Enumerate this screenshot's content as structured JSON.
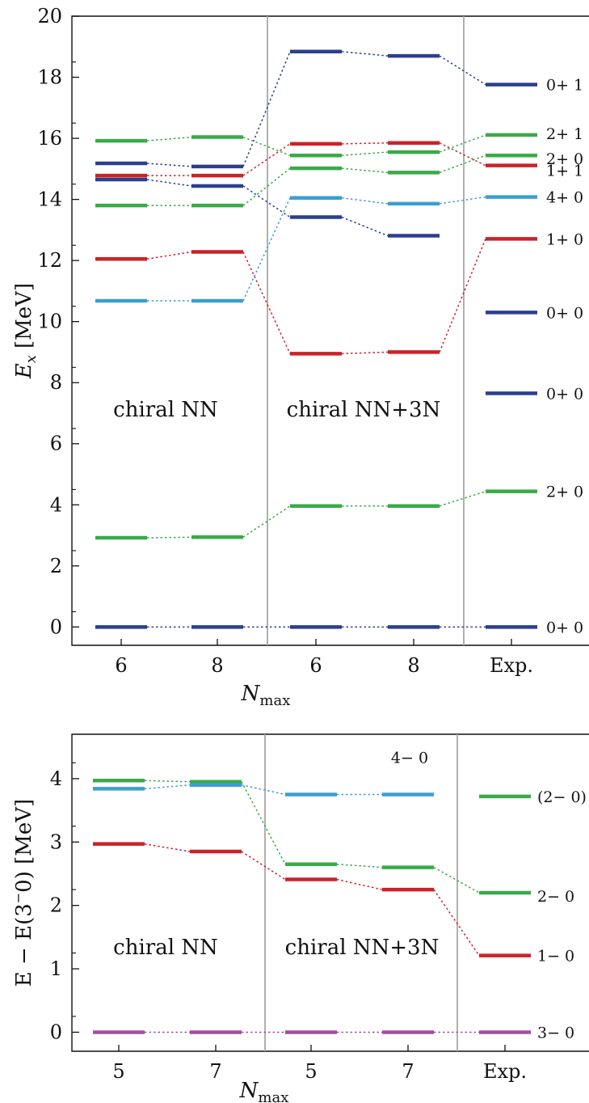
{
  "chart_data": [
    {
      "type": "level-scheme",
      "ylabel_main": "E",
      "ylabel_sub": "x",
      "ylabel_unit": "[MeV]",
      "xlabel_main": "N",
      "xlabel_sub": "max",
      "ylim": [
        -0.6,
        20
      ],
      "yticks": [
        "0",
        "2",
        "4",
        "6",
        "8",
        "10",
        "12",
        "14",
        "16",
        "18",
        "20"
      ],
      "columns": [
        "6",
        "8",
        "6",
        "8",
        "Exp."
      ],
      "group_labels": [
        "chiral NN",
        "chiral NN+3N"
      ],
      "colors": {
        "dark_blue": "#2c3f8f",
        "green": "#3aaa48",
        "red": "#cc2229",
        "light_blue": "#3a9fd2"
      },
      "states": [
        {
          "color": "dark_blue",
          "values": [
            0.0,
            0.0,
            0.0,
            0.0,
            0.0
          ],
          "label": "0+ 0"
        },
        {
          "color": "green",
          "values": [
            2.92,
            2.94,
            3.96,
            3.96,
            4.44
          ],
          "label": "2+ 0"
        },
        {
          "color": "dark_blue",
          "values": [
            null,
            null,
            null,
            null,
            7.65
          ],
          "label": "0+ 0"
        },
        {
          "color": "dark_blue",
          "values": [
            null,
            null,
            null,
            null,
            10.3
          ],
          "label": "0+ 0"
        },
        {
          "color": "red",
          "values": [
            12.05,
            12.28,
            8.95,
            9.0,
            12.71
          ],
          "label": "1+ 0"
        },
        {
          "color": "light_blue",
          "values": [
            10.68,
            10.68,
            14.05,
            13.86,
            14.08
          ],
          "label": "4+ 0"
        },
        {
          "color": "green",
          "values": [
            13.8,
            13.8,
            15.02,
            14.88,
            15.44
          ],
          "label": "2+ 0"
        },
        {
          "color": "dark_blue",
          "values": [
            14.65,
            14.44,
            13.42,
            12.81,
            null
          ],
          "label": ""
        },
        {
          "color": "red",
          "values": [
            14.78,
            14.78,
            15.82,
            15.85,
            15.11
          ],
          "label": "1+ 1"
        },
        {
          "color": "dark_blue",
          "values": [
            15.18,
            15.08,
            18.84,
            18.7,
            17.76
          ],
          "label": "0+ 1"
        },
        {
          "color": "green",
          "values": [
            15.92,
            16.04,
            15.44,
            15.55,
            16.11
          ],
          "label": "2+ 1"
        }
      ]
    },
    {
      "type": "level-scheme",
      "ylabel_main": "E − E(3",
      "ylabel_sup": "−",
      "ylabel_tail": "0)  [MeV]",
      "xlabel_main": "N",
      "xlabel_sub": "max",
      "ylim": [
        -0.3,
        4.7
      ],
      "yticks": [
        "0",
        "1",
        "2",
        "3",
        "4"
      ],
      "columns": [
        "5",
        "7",
        "5",
        "7",
        "Exp."
      ],
      "group_labels": [
        "chiral NN",
        "chiral NN+3N"
      ],
      "colors": {
        "purple": "#a24fa3",
        "red": "#cc2229",
        "green": "#3aaa48",
        "light_blue": "#3a9fd2"
      },
      "states": [
        {
          "color": "purple",
          "values": [
            0.0,
            0.0,
            0.0,
            0.0,
            0.0
          ],
          "label": "3− 0"
        },
        {
          "color": "red",
          "values": [
            2.97,
            2.85,
            2.41,
            2.25,
            1.21
          ],
          "label": "1− 0"
        },
        {
          "color": "green",
          "values": [
            3.97,
            3.95,
            2.65,
            2.6,
            2.2
          ],
          "label": "2− 0"
        },
        {
          "color": "light_blue",
          "values": [
            3.84,
            3.9,
            3.75,
            3.75,
            null
          ],
          "label": "4− 0"
        },
        {
          "color": "green",
          "values": [
            null,
            null,
            null,
            null,
            3.72
          ],
          "label": "(2− 0)"
        }
      ]
    }
  ]
}
